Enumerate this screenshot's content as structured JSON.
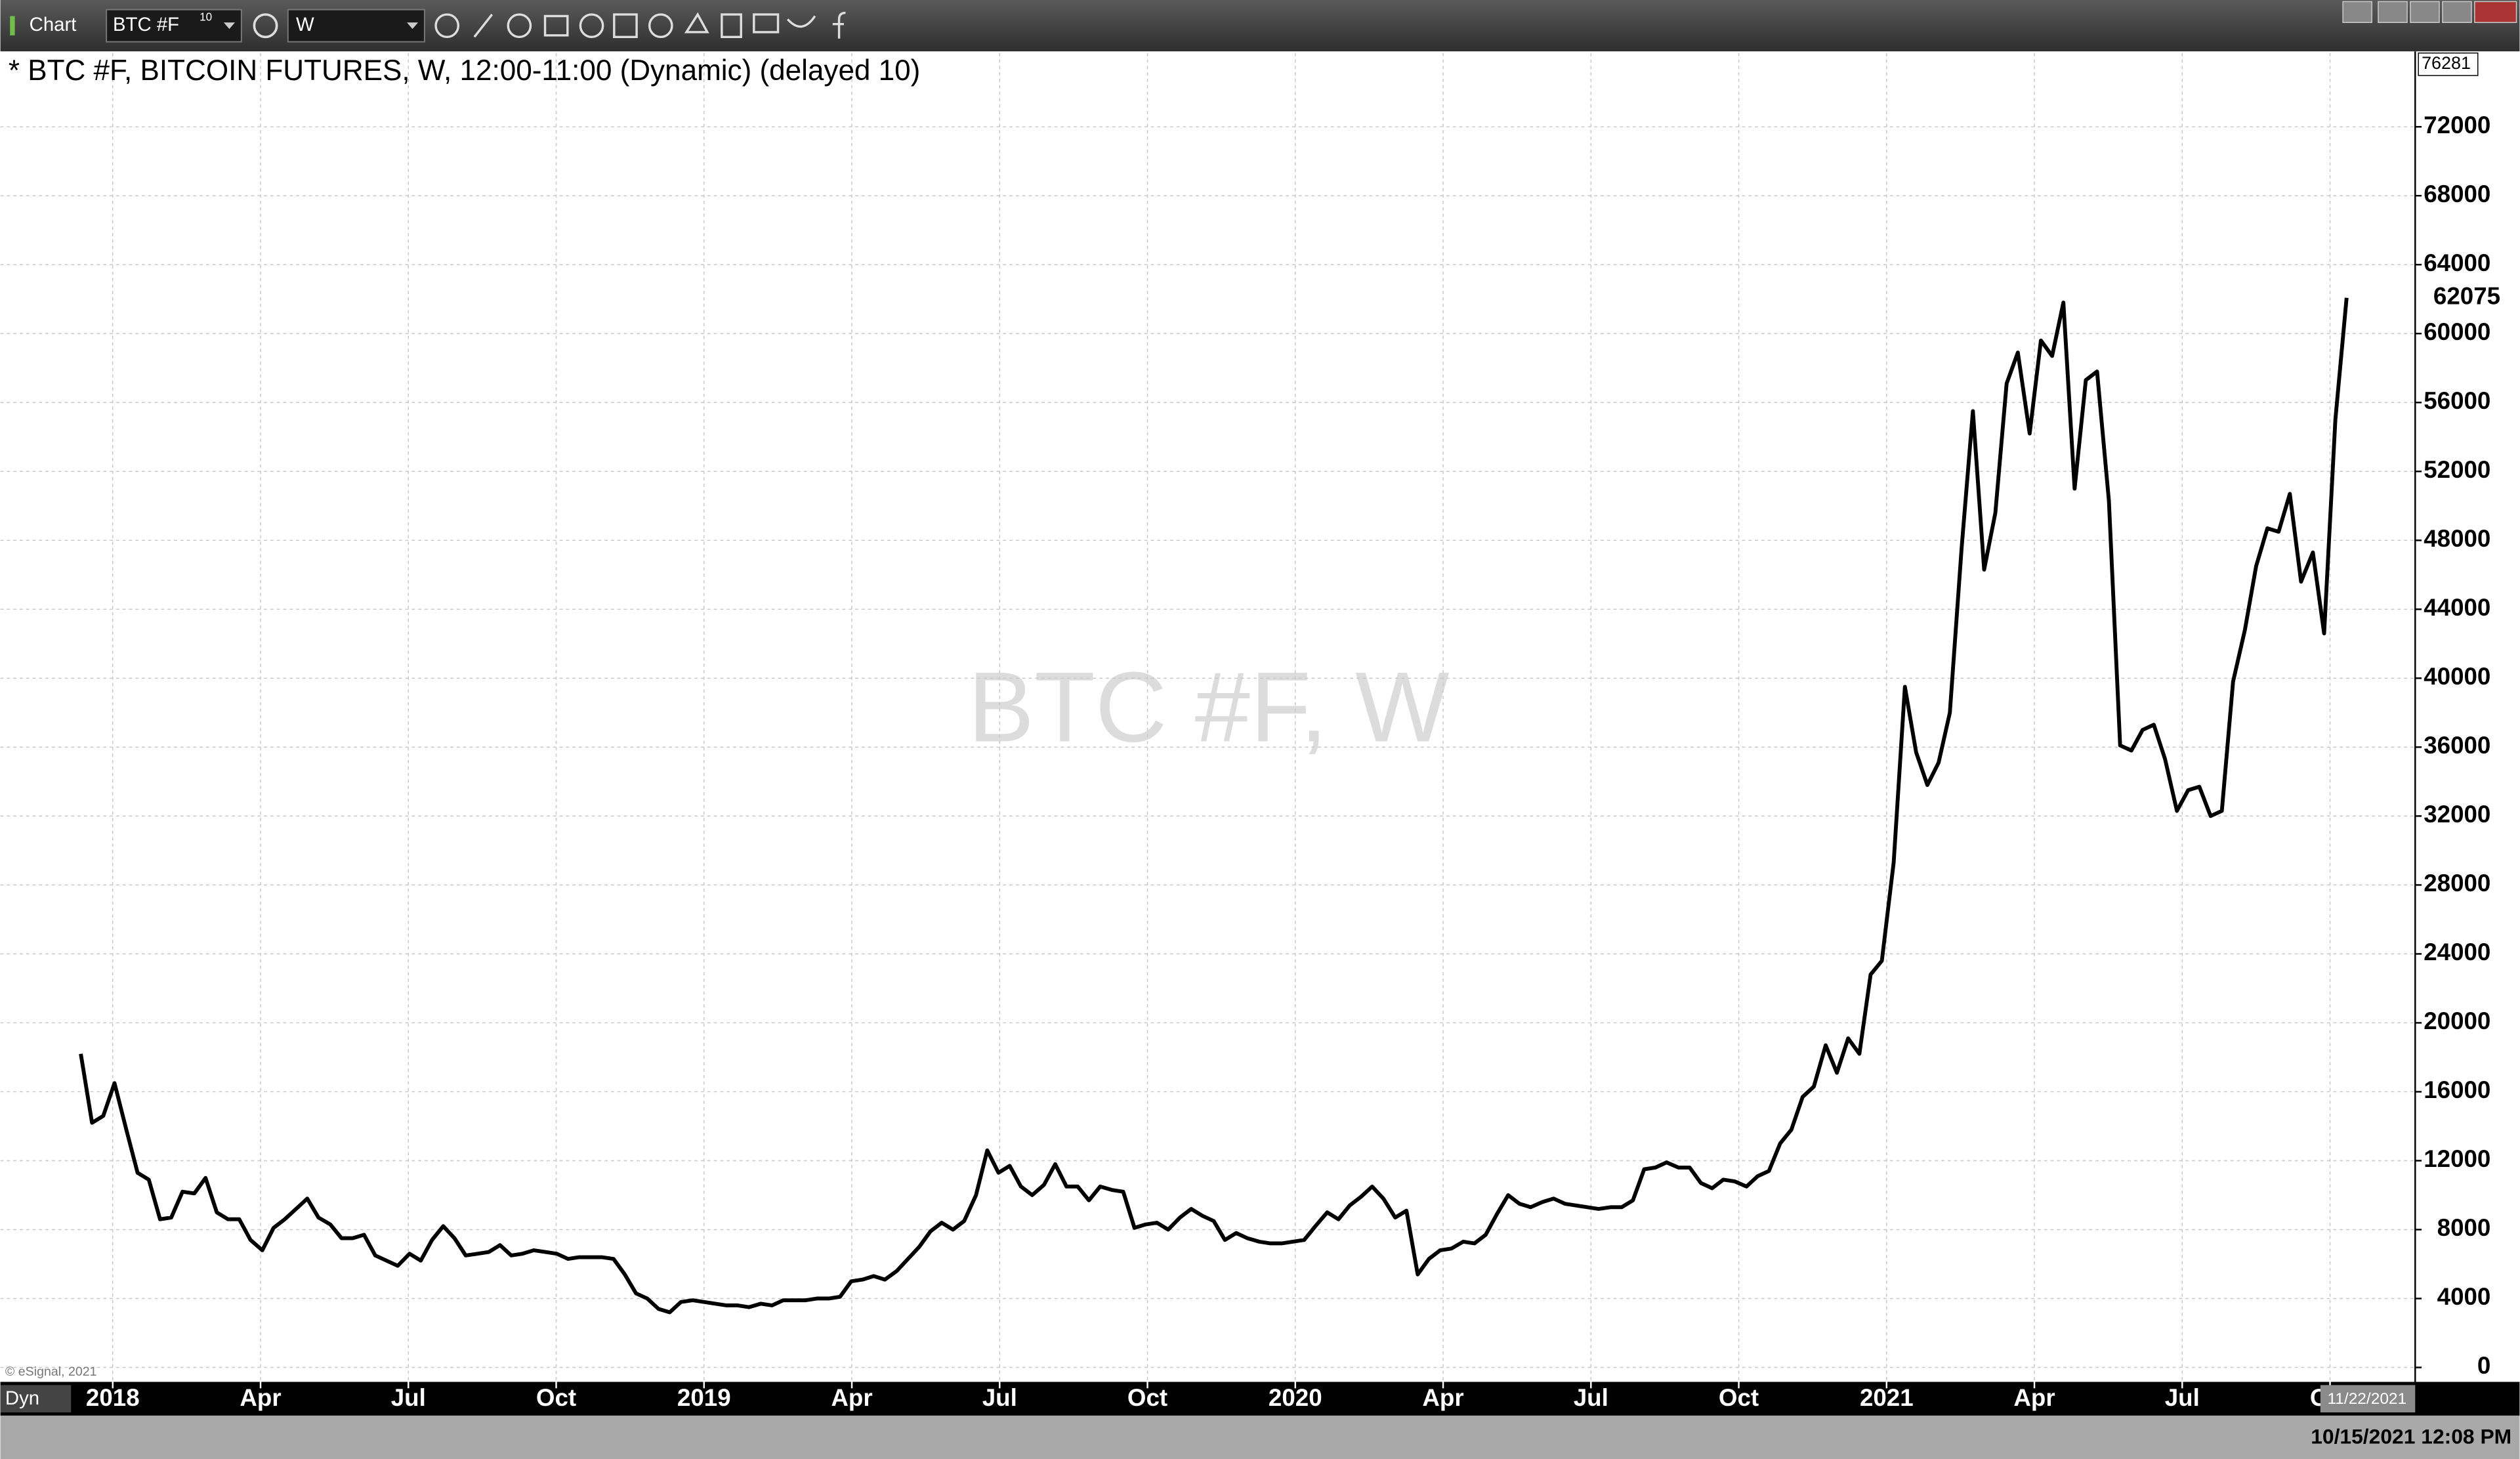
{
  "toolbar": {
    "title": "Chart",
    "symbol": "BTC #F",
    "symbol_badge": "10",
    "interval": "W"
  },
  "status_bar": {
    "mode": "Dyn",
    "datetime": "10/15/2021 12:08 PM"
  },
  "chart_data": {
    "type": "line",
    "title": "* BTC #F, BITCOIN FUTURES, W, 12:00-11:00 (Dynamic) (delayed 10)",
    "watermark": "BTC #F, W",
    "copyright": "© eSignal, 2021",
    "date_marker": "11/22/2021",
    "color": "#000000",
    "grid": true,
    "xlim": [
      2017.81,
      2021.894
    ],
    "ylim": [
      -650,
      76281
    ],
    "xticks": [
      2018,
      {
        "value": 2018.25,
        "label": "Apr"
      },
      {
        "value": 2018.5,
        "label": "Jul"
      },
      {
        "value": 2018.75,
        "label": "Oct"
      },
      2019,
      {
        "value": 2019.25,
        "label": "Apr"
      },
      {
        "value": 2019.5,
        "label": "Jul"
      },
      {
        "value": 2019.75,
        "label": "Oct"
      },
      2020,
      {
        "value": 2020.25,
        "label": "Apr"
      },
      {
        "value": 2020.5,
        "label": "Jul"
      },
      {
        "value": 2020.75,
        "label": "Oct"
      },
      2021,
      {
        "value": 2021.25,
        "label": "Apr"
      },
      {
        "value": 2021.5,
        "label": "Jul"
      },
      {
        "value": 2021.75,
        "label": "Oct"
      }
    ],
    "yticks": [
      0,
      4000,
      8000,
      12000,
      16000,
      20000,
      24000,
      28000,
      32000,
      36000,
      40000,
      44000,
      48000,
      52000,
      56000,
      60000,
      64000,
      68000,
      72000
    ],
    "x": [
      2017.946,
      2017.965,
      2017.984,
      2018.003,
      2018.023,
      2018.042,
      2018.061,
      2018.08,
      2018.099,
      2018.118,
      2018.138,
      2018.157,
      2018.176,
      2018.195,
      2018.214,
      2018.233,
      2018.253,
      2018.272,
      2018.291,
      2018.31,
      2018.329,
      2018.348,
      2018.368,
      2018.387,
      2018.406,
      2018.425,
      2018.444,
      2018.463,
      2018.482,
      2018.502,
      2018.521,
      2018.54,
      2018.559,
      2018.578,
      2018.597,
      2018.617,
      2018.636,
      2018.655,
      2018.674,
      2018.693,
      2018.712,
      2018.732,
      2018.751,
      2018.77,
      2018.789,
      2018.808,
      2018.827,
      2018.847,
      2018.866,
      2018.885,
      2018.904,
      2018.923,
      2018.942,
      2018.961,
      2018.981,
      2019.0,
      2019.019,
      2019.038,
      2019.057,
      2019.076,
      2019.096,
      2019.115,
      2019.134,
      2019.153,
      2019.172,
      2019.191,
      2019.211,
      2019.23,
      2019.249,
      2019.268,
      2019.287,
      2019.306,
      2019.326,
      2019.345,
      2019.364,
      2019.383,
      2019.402,
      2019.421,
      2019.44,
      2019.46,
      2019.479,
      2019.498,
      2019.517,
      2019.536,
      2019.555,
      2019.575,
      2019.594,
      2019.613,
      2019.632,
      2019.651,
      2019.67,
      2019.69,
      2019.709,
      2019.728,
      2019.747,
      2019.766,
      2019.785,
      2019.805,
      2019.824,
      2019.843,
      2019.862,
      2019.881,
      2019.9,
      2019.919,
      2019.939,
      2019.958,
      2019.977,
      2019.996,
      2020.015,
      2020.034,
      2020.054,
      2020.073,
      2020.092,
      2020.111,
      2020.13,
      2020.149,
      2020.169,
      2020.188,
      2020.207,
      2020.226,
      2020.245,
      2020.264,
      2020.284,
      2020.303,
      2020.322,
      2020.341,
      2020.36,
      2020.379,
      2020.398,
      2020.418,
      2020.437,
      2020.456,
      2020.475,
      2020.494,
      2020.513,
      2020.533,
      2020.552,
      2020.571,
      2020.59,
      2020.609,
      2020.628,
      2020.648,
      2020.667,
      2020.686,
      2020.705,
      2020.724,
      2020.743,
      2020.763,
      2020.782,
      2020.801,
      2020.82,
      2020.839,
      2020.858,
      2020.877,
      2020.897,
      2020.916,
      2020.935,
      2020.954,
      2020.973,
      2020.992,
      2021.012,
      2021.031,
      2021.05,
      2021.069,
      2021.088,
      2021.107,
      2021.127,
      2021.146,
      2021.165,
      2021.184,
      2021.203,
      2021.222,
      2021.242,
      2021.261,
      2021.28,
      2021.299,
      2021.318,
      2021.337,
      2021.356,
      2021.376,
      2021.395,
      2021.414,
      2021.433,
      2021.452,
      2021.471,
      2021.491,
      2021.51,
      2021.529,
      2021.548,
      2021.567,
      2021.586,
      2021.606,
      2021.625,
      2021.644,
      2021.663,
      2021.682,
      2021.701,
      2021.721,
      2021.74,
      2021.759,
      2021.778
    ],
    "values": [
      18200,
      14200,
      14600,
      16500,
      13800,
      11300,
      10900,
      8600,
      8700,
      10200,
      10100,
      11000,
      9000,
      8600,
      8600,
      7400,
      6800,
      8100,
      8600,
      9200,
      9800,
      8700,
      8300,
      7500,
      7500,
      7700,
      6500,
      6200,
      5900,
      6600,
      6200,
      7400,
      8200,
      7500,
      6500,
      6600,
      6700,
      7100,
      6500,
      6600,
      6800,
      6700,
      6600,
      6300,
      6400,
      6400,
      6400,
      6300,
      5400,
      4300,
      4000,
      3400,
      3200,
      3800,
      3900,
      3800,
      3700,
      3600,
      3600,
      3500,
      3700,
      3600,
      3900,
      3900,
      3900,
      4000,
      4000,
      4100,
      5000,
      5100,
      5300,
      5100,
      5600,
      6300,
      7000,
      7900,
      8400,
      8000,
      8500,
      10000,
      12600,
      11300,
      11700,
      10500,
      10000,
      10600,
      11800,
      10500,
      10500,
      9700,
      10500,
      10300,
      10200,
      8100,
      8300,
      8400,
      8000,
      8700,
      9200,
      8800,
      8500,
      7400,
      7800,
      7500,
      7300,
      7200,
      7200,
      7300,
      7400,
      8200,
      9000,
      8600,
      9400,
      9900,
      10500,
      9800,
      8700,
      9100,
      5400,
      6300,
      6800,
      6900,
      7300,
      7200,
      7700,
      8900,
      10000,
      9500,
      9300,
      9600,
      9800,
      9500,
      9400,
      9300,
      9200,
      9300,
      9300,
      9700,
      11500,
      11600,
      11900,
      11600,
      11600,
      10700,
      10400,
      10900,
      10800,
      10500,
      11100,
      11400,
      13000,
      13800,
      15700,
      16300,
      18700,
      17100,
      19100,
      18200,
      22800,
      23600,
      29300,
      39500,
      35700,
      33800,
      35100,
      38000,
      47600,
      55500,
      46300,
      49600,
      57100,
      58900,
      54200,
      59600,
      58700,
      61800,
      51000,
      57300,
      57800,
      50300,
      36100,
      35800,
      37000,
      37300,
      35300,
      32300,
      33500,
      33700,
      32000,
      32300,
      39800,
      42800,
      46500,
      48700,
      48500,
      50700,
      45600,
      47300,
      42600,
      55000,
      62075
    ]
  }
}
